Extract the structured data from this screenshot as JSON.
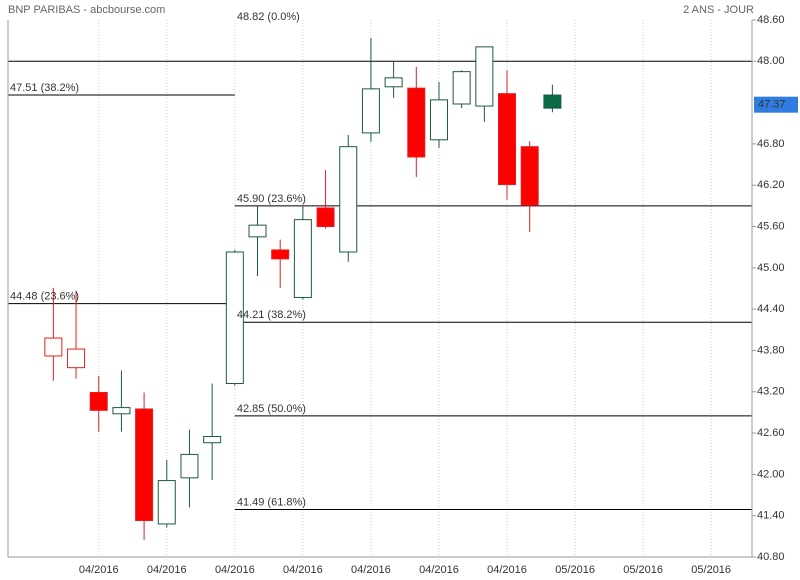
{
  "chart_data": {
    "type": "candlestick",
    "title": "BNP PARIBAS - abcbourse.com",
    "subtitle": "2 ANS - JOUR",
    "open": [
      43.72,
      43.55,
      43.19,
      42.88,
      42.95,
      41.28,
      41.95,
      42.46,
      43.32,
      45.45,
      45.26,
      44.57,
      45.87,
      45.23,
      46.96,
      47.63,
      47.61,
      46.86,
      47.38,
      47.35,
      47.53,
      46.76,
      47.32
    ],
    "high": [
      44.71,
      44.67,
      43.43,
      43.51,
      43.19,
      42.21,
      42.65,
      43.32,
      45.26,
      45.91,
      45.41,
      45.9,
      46.42,
      46.93,
      48.34,
      47.99,
      47.92,
      47.7,
      47.87,
      48.21,
      47.87,
      46.84,
      47.66
    ],
    "low": [
      43.36,
      43.39,
      42.62,
      42.62,
      41.05,
      41.23,
      41.52,
      41.92,
      43.29,
      44.88,
      44.71,
      44.54,
      45.57,
      45.09,
      46.83,
      47.47,
      46.32,
      46.74,
      47.32,
      47.12,
      45.99,
      45.52,
      47.26
    ],
    "close": [
      43.98,
      43.82,
      42.93,
      42.97,
      41.33,
      41.91,
      42.29,
      42.55,
      45.23,
      45.62,
      45.13,
      45.7,
      45.6,
      46.76,
      47.6,
      47.76,
      46.61,
      47.44,
      47.85,
      48.21,
      46.21,
      45.91,
      47.51
    ],
    "strokes": [
      "#e02020",
      "#e02020",
      "#e02020",
      "#1e5a40",
      "#e02020",
      "#1e5a40",
      "#1e5a40",
      "#1e5a40",
      "#1e5a40",
      "#1e5a40",
      "#e02020",
      "#1e5a40",
      "#e02020",
      "#1e5a40",
      "#1e5a40",
      "#1e5a40",
      "#e02020",
      "#1e5a40",
      "#1e5a40",
      "#1e5a40",
      "#e02020",
      "#e02020",
      "#1e5a40"
    ],
    "fills": [
      "none",
      "none",
      "#ff0000",
      "none",
      "#ff0000",
      "none",
      "none",
      "none",
      "none",
      "none",
      "#ff0000",
      "none",
      "#ff0000",
      "none",
      "none",
      "none",
      "#ff0000",
      "none",
      "none",
      "none",
      "#ff0000",
      "#ff0000",
      "#0b6b44"
    ],
    "xlim": [
      -2,
      30.8
    ],
    "xticks": [
      {
        "value": 2,
        "label": "04/2016"
      },
      {
        "value": 5,
        "label": "04/2016"
      },
      {
        "value": 8,
        "label": "04/2016"
      },
      {
        "value": 11,
        "label": "04/2016"
      },
      {
        "value": 14,
        "label": "04/2016"
      },
      {
        "value": 17,
        "label": "04/2016"
      },
      {
        "value": 20,
        "label": "04/2016"
      },
      {
        "value": 23,
        "label": "05/2016"
      },
      {
        "value": 26,
        "label": "05/2016"
      },
      {
        "value": 29,
        "label": "05/2016"
      }
    ],
    "ylim": [
      40.8,
      48.6
    ],
    "yticks": [
      {
        "value": 40.8,
        "label": "40.80"
      },
      {
        "value": 41.4,
        "label": "41.40"
      },
      {
        "value": 42,
        "label": "42.00"
      },
      {
        "value": 42.6,
        "label": "42.60"
      },
      {
        "value": 43.2,
        "label": "43.20"
      },
      {
        "value": 43.8,
        "label": "43.80"
      },
      {
        "value": 44.4,
        "label": "44.40"
      },
      {
        "value": 45,
        "label": "45.00"
      },
      {
        "value": 45.6,
        "label": "45.60"
      },
      {
        "value": 46.2,
        "label": "46.20"
      },
      {
        "value": 46.8,
        "label": "46.80"
      },
      {
        "value": 48,
        "label": "48.00"
      },
      {
        "value": 48.6,
        "label": "48.60"
      }
    ],
    "last_price": 47.37,
    "horizontal_line": 48,
    "fib_levels": [
      {
        "value": 48.82,
        "label": "48.82  (0.0%)",
        "span": "right"
      },
      {
        "value": 47.51,
        "label": "47.51  (38.2%)",
        "span": "left"
      },
      {
        "value": 45.9,
        "label": "45.90  (23.6%)",
        "span": "right"
      },
      {
        "value": 44.48,
        "label": "44.48  (23.6%)",
        "span": "left"
      },
      {
        "value": 44.21,
        "label": "44.21  (38.2%)",
        "span": "right"
      },
      {
        "value": 42.85,
        "label": "42.85  (50.0%)",
        "span": "right"
      },
      {
        "value": 41.49,
        "label": "41.49  (61.8%)",
        "span": "right"
      }
    ]
  }
}
